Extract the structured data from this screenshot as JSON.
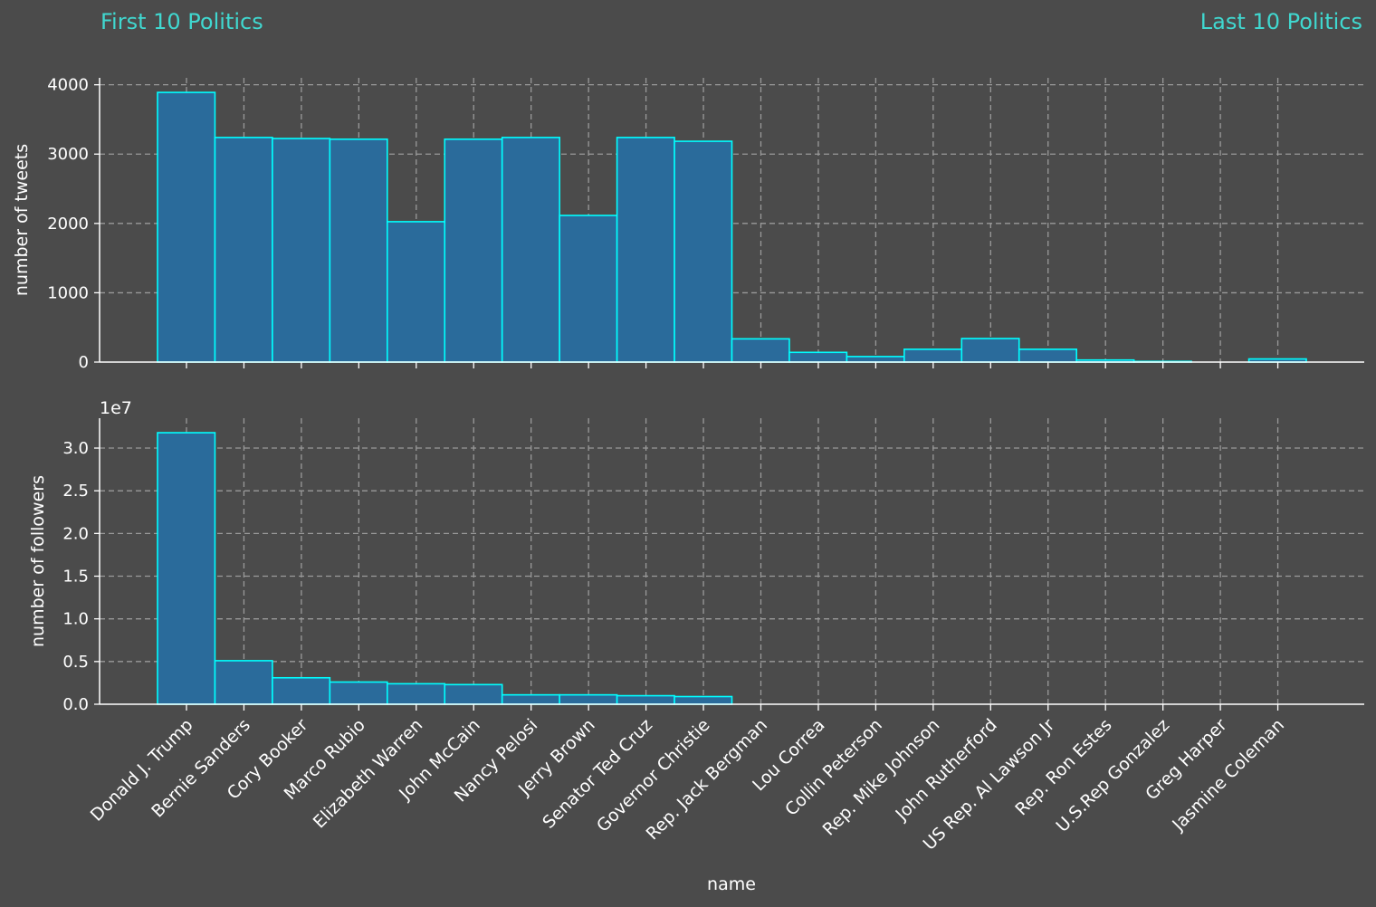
{
  "headers": {
    "left": "First 10 Politics",
    "right": "Last 10 Politics"
  },
  "colors": {
    "bar_fill": "#2a6b9b",
    "bar_edge": "#00ffff",
    "background": "#4b4b4b",
    "header": "#40d8d0",
    "grid": "#9a9a9a",
    "axis": "#ffffff"
  },
  "chart_data": {
    "type": "bar",
    "xlabel": "name",
    "categories": [
      "Donald J. Trump",
      "Bernie Sanders",
      "Cory Booker",
      "Marco Rubio",
      "Elizabeth Warren",
      "John McCain",
      "Nancy Pelosi",
      "Jerry Brown",
      "Senator Ted Cruz",
      "Governor Christie",
      "Rep. Jack Bergman",
      "Lou Correa",
      "Collin Peterson",
      "Rep. Mike Johnson",
      "John Rutherford",
      "US Rep. Al Lawson Jr",
      "Rep. Ron Estes",
      "U.S.Rep Gonzalez",
      "Greg Harper",
      "Jasmine Coleman"
    ],
    "grid": true,
    "panels": [
      {
        "ylabel": "number of tweets",
        "ylim": [
          0,
          4100
        ],
        "yticks": [
          0,
          1000,
          2000,
          3000,
          4000
        ],
        "ytick_labels": [
          "0",
          "1000",
          "2000",
          "3000",
          "4000"
        ],
        "offset_label": "",
        "values": [
          3890,
          3240,
          3225,
          3215,
          2025,
          3215,
          3240,
          2115,
          3240,
          3185,
          335,
          140,
          80,
          185,
          340,
          185,
          30,
          10,
          0,
          45
        ]
      },
      {
        "ylabel": "number of followers",
        "ylim": [
          0,
          3.35
        ],
        "yticks": [
          0,
          0.5,
          1.0,
          1.5,
          2.0,
          2.5,
          3.0
        ],
        "ytick_labels": [
          "0.0",
          "0.5",
          "1.0",
          "1.5",
          "2.0",
          "2.5",
          "3.0"
        ],
        "offset_label": "1e7",
        "values": [
          3.18,
          0.51,
          0.31,
          0.26,
          0.24,
          0.23,
          0.11,
          0.11,
          0.1,
          0.09,
          0.0,
          0.0,
          0.0,
          0.0,
          0.0,
          0.0,
          0.0,
          0.0,
          0.0,
          0.0
        ]
      }
    ]
  }
}
